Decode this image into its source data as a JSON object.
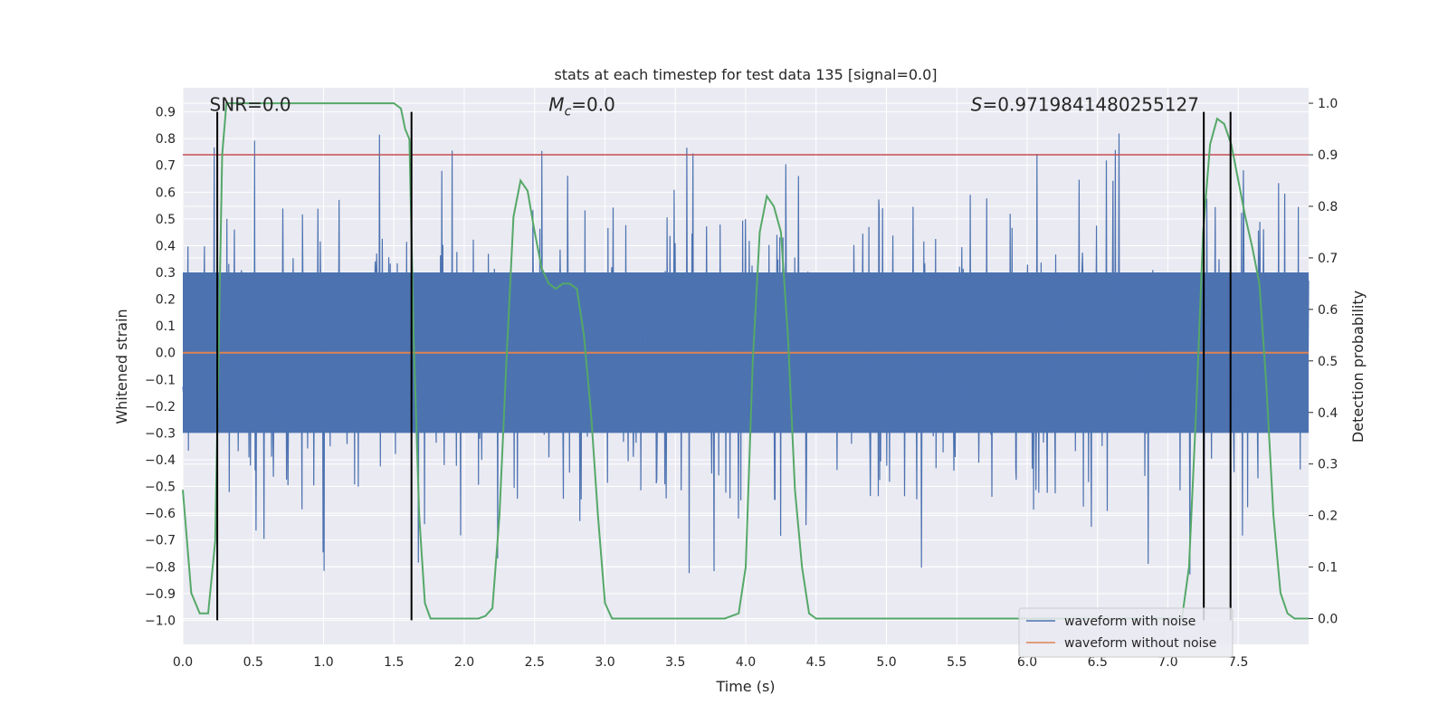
{
  "chart_data": {
    "type": "line",
    "title": "stats at each timestep for test data 135 [signal=0.0]",
    "xlabel": "Time (s)",
    "ylabel": "Whitened strain",
    "ylabel_right": "Detection probability",
    "xlim": [
      0.0,
      8.0
    ],
    "ylim": [
      -1.09,
      0.99
    ],
    "ylim_right": [
      -0.05,
      1.03
    ],
    "xticks": [
      0.0,
      0.5,
      1.0,
      1.5,
      2.0,
      2.5,
      3.0,
      3.5,
      4.0,
      4.5,
      5.0,
      5.5,
      6.0,
      6.5,
      7.0,
      7.5
    ],
    "xtick_labels": [
      "0.0",
      "0.5",
      "1.0",
      "1.5",
      "2.0",
      "2.5",
      "3.0",
      "3.5",
      "4.0",
      "4.5",
      "5.0",
      "5.5",
      "6.0",
      "6.5",
      "7.0",
      "7.5"
    ],
    "yticks": [
      0.9,
      0.8,
      0.7,
      0.6,
      0.5,
      0.4,
      0.3,
      0.2,
      0.1,
      0.0,
      -0.1,
      -0.2,
      -0.3,
      -0.4,
      -0.5,
      -0.6,
      -0.7,
      -0.8,
      -0.9,
      -1.0
    ],
    "ytick_labels": [
      "0.9",
      "0.8",
      "0.7",
      "0.6",
      "0.5",
      "0.4",
      "0.3",
      "0.2",
      "0.1",
      "0.0",
      "−0.1",
      "−0.2",
      "−0.3",
      "−0.4",
      "−0.5",
      "−0.6",
      "−0.7",
      "−0.8",
      "−0.9",
      "−1.0"
    ],
    "yticks_right": [
      1.0,
      0.9,
      0.8,
      0.7,
      0.6,
      0.5,
      0.4,
      0.3,
      0.2,
      0.1,
      0.0
    ],
    "ytick_labels_right": [
      "1.0",
      "0.9",
      "0.8",
      "0.7",
      "0.6",
      "0.5",
      "0.4",
      "0.3",
      "0.2",
      "0.1",
      "0.0"
    ],
    "series": [
      {
        "name": "waveform with noise",
        "color": "#4c72b0",
        "kind": "noise",
        "core_amplitude": 0.3,
        "peak_amplitude": 0.85
      },
      {
        "name": "waveform without noise",
        "color": "#dd8452",
        "kind": "constant",
        "value": 0.0
      },
      {
        "name": "detection probability",
        "color": "#55a868",
        "axis": "right",
        "x": [
          0.0,
          0.06,
          0.12,
          0.18,
          0.23,
          0.26,
          0.28,
          0.31,
          0.4,
          0.6,
          0.8,
          1.0,
          1.2,
          1.4,
          1.5,
          1.55,
          1.58,
          1.61,
          1.64,
          1.68,
          1.72,
          1.76,
          1.82,
          1.9,
          2.0,
          2.1,
          2.15,
          2.2,
          2.25,
          2.3,
          2.35,
          2.4,
          2.45,
          2.5,
          2.55,
          2.6,
          2.65,
          2.7,
          2.75,
          2.8,
          2.85,
          2.9,
          2.95,
          3.0,
          3.05,
          3.5,
          3.8,
          3.85,
          3.95,
          4.0,
          4.05,
          4.1,
          4.15,
          4.2,
          4.25,
          4.3,
          4.35,
          4.4,
          4.45,
          4.5,
          5.0,
          6.0,
          7.0,
          7.05,
          7.1,
          7.15,
          7.2,
          7.25,
          7.3,
          7.35,
          7.4,
          7.45,
          7.5,
          7.55,
          7.6,
          7.65,
          7.7,
          7.75,
          7.8,
          7.85,
          7.9,
          7.95,
          8.0
        ],
        "values": [
          0.25,
          0.05,
          0.01,
          0.01,
          0.15,
          0.6,
          0.9,
          1.0,
          1.0,
          1.0,
          1.0,
          1.0,
          1.0,
          1.0,
          1.0,
          0.99,
          0.95,
          0.93,
          0.55,
          0.2,
          0.03,
          0.0,
          0.0,
          0.0,
          0.0,
          0.0,
          0.005,
          0.02,
          0.2,
          0.5,
          0.78,
          0.85,
          0.83,
          0.75,
          0.68,
          0.65,
          0.64,
          0.65,
          0.65,
          0.64,
          0.55,
          0.4,
          0.2,
          0.03,
          0.0,
          0.0,
          0.0,
          0.0,
          0.01,
          0.1,
          0.5,
          0.75,
          0.82,
          0.8,
          0.75,
          0.55,
          0.25,
          0.1,
          0.01,
          0.0,
          0.0,
          0.0,
          0.0,
          0.0,
          0.0,
          0.1,
          0.4,
          0.75,
          0.92,
          0.97,
          0.96,
          0.92,
          0.85,
          0.78,
          0.72,
          0.65,
          0.45,
          0.2,
          0.05,
          0.01,
          0.0,
          0.0,
          0.0
        ]
      }
    ],
    "threshold_right": 0.9,
    "threshold_color": "#c44e52",
    "vlines_x": [
      0.245,
      1.625,
      7.255,
      7.445
    ],
    "vline_ymin": -1.0,
    "vline_ymax": 0.9,
    "annotations": [
      {
        "text": "SNR=0.0",
        "x": 0.19,
        "y": 0.9
      },
      {
        "text_prefix": "M",
        "text_sub": "c",
        "text_suffix": "=0.0",
        "x": 2.6,
        "y": 0.9
      },
      {
        "text_prefix": "S",
        "text_suffix": "=0.9719841480255127",
        "x": 5.6,
        "y": 0.9
      }
    ],
    "legend": {
      "position": "lower-right",
      "entries": [
        "waveform with noise",
        "waveform without noise"
      ]
    },
    "colors": {
      "background": "#eaeaf2",
      "grid": "#ffffff",
      "axis_text": "#262626"
    },
    "grid": true
  }
}
